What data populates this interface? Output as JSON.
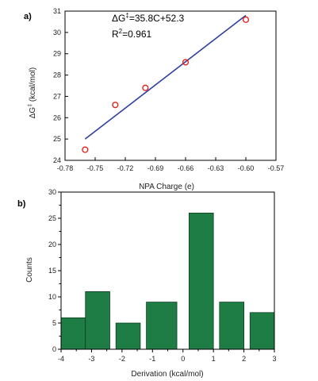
{
  "chart_data": [
    {
      "type": "scatter",
      "panel_label": "a)",
      "xlabel": "NPA Charge (e)",
      "ylabel": "ΔG (kcal/mol)",
      "ylabel_main": "ΔG",
      "ylabel_sup": "‡",
      "ylabel_rest": " (kcal/mol)",
      "xlim": [
        -0.78,
        -0.57
      ],
      "ylim": [
        24,
        31
      ],
      "xticks": [
        -0.78,
        -0.75,
        -0.72,
        -0.69,
        -0.66,
        -0.63,
        -0.6,
        -0.57
      ],
      "xtick_labels": [
        "-0.78",
        "-0.75",
        "-0.72",
        "-0.69",
        "-0.66",
        "-0.63",
        "-0.60",
        "-0.57"
      ],
      "yticks": [
        24,
        25,
        26,
        27,
        28,
        29,
        30,
        31
      ],
      "ytick_labels": [
        "24",
        "25",
        "26",
        "27",
        "28",
        "29",
        "30",
        "31"
      ],
      "points": [
        {
          "x": -0.76,
          "y": 24.5
        },
        {
          "x": -0.73,
          "y": 26.6
        },
        {
          "x": -0.7,
          "y": 27.4
        },
        {
          "x": -0.66,
          "y": 28.6
        },
        {
          "x": -0.6,
          "y": 30.6
        }
      ],
      "fit": {
        "x_start": -0.76,
        "y_start": 25.0,
        "x_end": -0.6,
        "y_end": 30.8
      },
      "annotation_line1": "ΔG‡=35.8C+52.3",
      "annotation_line1_parts": {
        "main": "ΔG",
        "sup": "‡",
        "rest": "=35.8C+52.3"
      },
      "annotation_line2": "R2=0.961",
      "annotation_line2_parts": {
        "main": "R",
        "sup": "2",
        "rest": "=0.961"
      },
      "colors": {
        "points": "#e8231f",
        "fit": "#2d3fa0"
      },
      "grid": false
    },
    {
      "type": "bar",
      "panel_label": "b)",
      "xlabel": "Derivation (kcal/mol)",
      "ylabel": "Counts",
      "xlim": [
        -4,
        3
      ],
      "ylim": [
        0,
        30
      ],
      "xticks": [
        -4,
        -3,
        -2,
        -1,
        0,
        1,
        2,
        3
      ],
      "xtick_labels": [
        "-4",
        "-3",
        "-2",
        "-1",
        "0",
        "1",
        "2",
        "3"
      ],
      "yticks": [
        0,
        5,
        10,
        15,
        20,
        25,
        30
      ],
      "ytick_labels": [
        "0",
        "5",
        "10",
        "15",
        "20",
        "25",
        "30"
      ],
      "bins": [
        {
          "x0": -4.0,
          "x1": -3.2,
          "value": 6
        },
        {
          "x0": -3.2,
          "x1": -2.4,
          "value": 11
        },
        {
          "x0": -2.2,
          "x1": -1.4,
          "value": 5
        },
        {
          "x0": -1.2,
          "x1": -0.2,
          "value": 9
        },
        {
          "x0": 0.2,
          "x1": 1.0,
          "value": 26
        },
        {
          "x0": 1.2,
          "x1": 2.0,
          "value": 9
        },
        {
          "x0": 2.2,
          "x1": 3.0,
          "value": 7
        }
      ],
      "colors": {
        "bar": "#1e7d45",
        "bar_edge": "#0d3d20"
      },
      "grid": false
    }
  ]
}
